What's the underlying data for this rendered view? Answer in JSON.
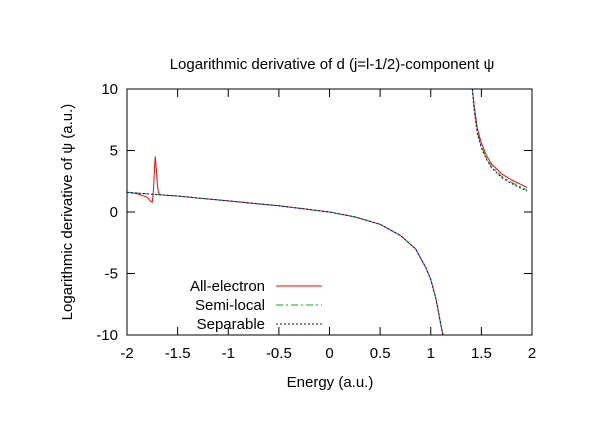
{
  "chart_data": {
    "type": "line",
    "title": "Logarithmic derivative of d (j=l-1/2)-component ψ",
    "xlabel": "Energy (a.u.)",
    "ylabel": "Logarithmic derivative of ψ (a.u.)",
    "xlim": [
      -2,
      2
    ],
    "ylim": [
      -10,
      10
    ],
    "xticks": [
      -2,
      -1.5,
      -1,
      -0.5,
      0,
      0.5,
      1,
      1.5,
      2
    ],
    "xtick_labels": [
      "-2",
      "-1.5",
      "-1",
      "-0.5",
      "0",
      "0.5",
      "1",
      "1.5",
      "2"
    ],
    "yticks": [
      -10,
      -5,
      0,
      5,
      10
    ],
    "ytick_labels": [
      "-10",
      "-5",
      "0",
      "5",
      "10"
    ],
    "grid": false,
    "legend_position": "bottom-left",
    "series": [
      {
        "name": "All-electron",
        "color": "#ff0000",
        "dash": "solid",
        "segments": [
          {
            "x": [
              -2.0,
              -1.9,
              -1.8,
              -1.77,
              -1.75,
              -1.74,
              -1.73,
              -1.72,
              -1.71,
              -1.7,
              -1.69,
              -1.68,
              -1.66,
              -1.6,
              -1.5,
              -1.25,
              -1.0,
              -0.75,
              -0.5,
              -0.25,
              0.0,
              0.25,
              0.5,
              0.7,
              0.85,
              0.95,
              1.0,
              1.05,
              1.08,
              1.1,
              1.12
            ],
            "y": [
              1.6,
              1.5,
              1.2,
              0.9,
              0.8,
              1.6,
              3.2,
              4.5,
              3.4,
              2.2,
              1.6,
              1.45,
              1.4,
              1.35,
              1.3,
              1.1,
              0.9,
              0.7,
              0.5,
              0.25,
              0.0,
              -0.4,
              -1.0,
              -1.9,
              -3.0,
              -4.5,
              -5.5,
              -7.0,
              -8.3,
              -9.2,
              -10.0
            ]
          },
          {
            "x": [
              1.41,
              1.43,
              1.46,
              1.5,
              1.55,
              1.6,
              1.7,
              1.8,
              1.9,
              1.95
            ],
            "y": [
              10.0,
              8.6,
              6.8,
              5.6,
              4.6,
              3.9,
              3.1,
              2.6,
              2.2,
              2.0
            ]
          }
        ]
      },
      {
        "name": "Semi-local",
        "color": "#00b400",
        "dash": "7,3,2,3",
        "segments": [
          {
            "x": [
              -2.0,
              -1.75,
              -1.5,
              -1.25,
              -1.0,
              -0.75,
              -0.5,
              -0.25,
              0.0,
              0.25,
              0.5,
              0.7,
              0.85,
              0.95,
              1.0,
              1.05,
              1.08,
              1.1,
              1.12
            ],
            "y": [
              1.6,
              1.45,
              1.3,
              1.1,
              0.9,
              0.7,
              0.5,
              0.25,
              0.0,
              -0.4,
              -1.0,
              -1.9,
              -3.0,
              -4.5,
              -5.5,
              -7.0,
              -8.3,
              -9.2,
              -10.0
            ]
          },
          {
            "x": [
              1.41,
              1.43,
              1.46,
              1.5,
              1.55,
              1.6,
              1.7,
              1.8,
              1.9,
              1.95
            ],
            "y": [
              10.0,
              8.3,
              6.5,
              5.3,
              4.4,
              3.7,
              2.9,
              2.4,
              2.0,
              1.8
            ]
          }
        ]
      },
      {
        "name": "Separable",
        "color": "#0000cc",
        "dash": "2,2",
        "segments": [
          {
            "x": [
              -2.0,
              -1.75,
              -1.5,
              -1.25,
              -1.0,
              -0.75,
              -0.5,
              -0.25,
              0.0,
              0.25,
              0.5,
              0.7,
              0.85,
              0.95,
              1.0,
              1.05,
              1.08,
              1.1,
              1.12
            ],
            "y": [
              1.6,
              1.45,
              1.3,
              1.1,
              0.9,
              0.7,
              0.5,
              0.25,
              0.0,
              -0.4,
              -1.0,
              -1.9,
              -3.0,
              -4.5,
              -5.5,
              -7.0,
              -8.3,
              -9.2,
              -10.0
            ]
          },
          {
            "x": [
              1.41,
              1.43,
              1.46,
              1.5,
              1.55,
              1.6,
              1.7,
              1.8,
              1.9,
              1.95
            ],
            "y": [
              10.0,
              8.2,
              6.4,
              5.2,
              4.3,
              3.6,
              2.8,
              2.3,
              1.9,
              1.7
            ]
          }
        ]
      }
    ]
  }
}
